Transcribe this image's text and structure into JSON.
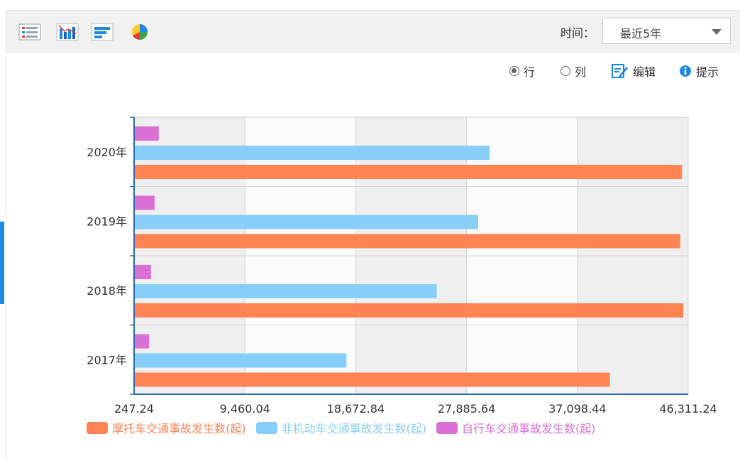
{
  "toolbar": {
    "icons": [
      "list-view-icon",
      "bar-chart-icon",
      "horizontal-bar-icon",
      "pie-chart-icon"
    ],
    "time_label": "时间：",
    "time_select_value": "最近5年"
  },
  "options": {
    "row_label": "行",
    "col_label": "列",
    "edit_label": "编辑",
    "tip_label": "提示",
    "selected": "row"
  },
  "colors": {
    "motorcycle": "#ff8353",
    "non_motor": "#87cefa",
    "bicycle": "#da70d6",
    "accent": "#1e88e5"
  },
  "chart_data": {
    "type": "bar",
    "orientation": "horizontal",
    "categories": [
      "2020年",
      "2019年",
      "2018年",
      "2017年"
    ],
    "series": [
      {
        "name": "自行车交通事故发生数(起)",
        "values": [
          2300,
          1950,
          1650,
          1500
        ]
      },
      {
        "name": "非机动车交通事故发生数(起)",
        "values": [
          29800,
          28850,
          25400,
          17900
        ]
      },
      {
        "name": "摩托车交通事故发生数(起)",
        "values": [
          45800,
          45650,
          45900,
          39800
        ]
      }
    ],
    "xlim": [
      247.24,
      46311.24
    ],
    "xticks": [
      "247.24",
      "9,460.04",
      "18,672.84",
      "27,885.64",
      "37,098.44",
      "46,311.24"
    ],
    "legend": [
      "摩托车交通事故发生数(起)",
      "非机动车交通事故发生数(起)",
      "自行车交通事故发生数(起)"
    ],
    "legend_position": "bottom-left"
  }
}
